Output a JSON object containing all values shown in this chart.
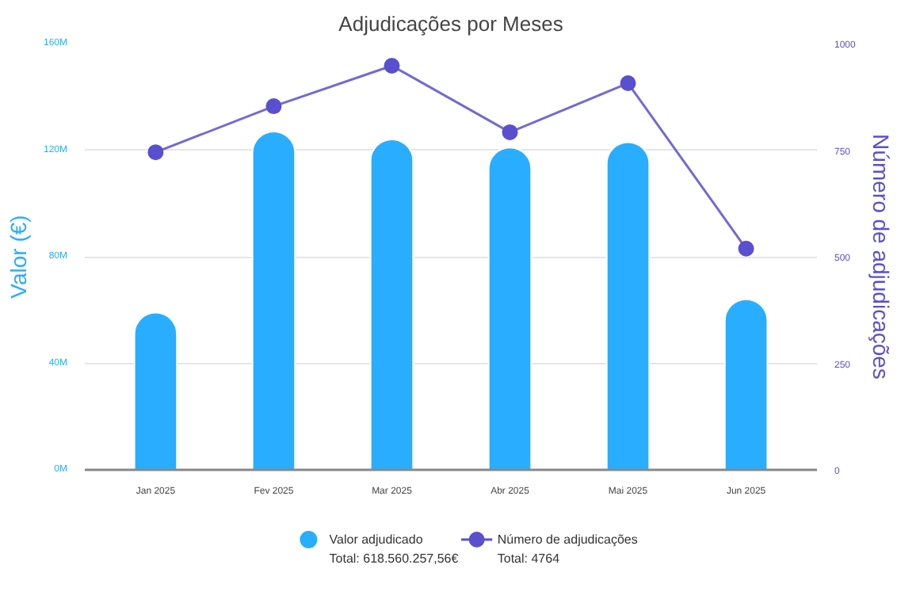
{
  "chart_data": {
    "type": "bar",
    "title": "Adjudicações por Meses",
    "ylabel": "Valor (€)",
    "y2label": "Número de adjudicações",
    "categories": [
      "Jan 2025",
      "Fev 2025",
      "Mar 2025",
      "Abr 2025",
      "Mai 2025",
      "Jun 2025"
    ],
    "series": [
      {
        "name": "Valor adjudicado",
        "color": "#29aeff",
        "values": [
          59,
          127,
          124,
          121,
          123,
          64
        ]
      },
      {
        "name": "Número de adjudicações",
        "type": "line",
        "axis": "y2",
        "color": "#5a4fcf",
        "marker": "circle",
        "values": [
          745,
          853,
          948,
          792,
          907,
          519
        ]
      }
    ],
    "annotations": [
      "Total: 618.560.257,56€",
      "Total: 4764"
    ],
    "ylim": [
      0,
      160
    ],
    "yticks": [
      {
        "value": 0,
        "label": "0M"
      },
      {
        "value": 40,
        "label": "40M"
      },
      {
        "value": 80,
        "label": "80M"
      },
      {
        "value": 120,
        "label": "120M"
      },
      {
        "value": 160,
        "label": "160M"
      }
    ],
    "y2lim": [
      0,
      1000
    ],
    "y2ticks": [
      0,
      250,
      500,
      750,
      1000
    ],
    "grid": "y",
    "legend": "bottom"
  }
}
